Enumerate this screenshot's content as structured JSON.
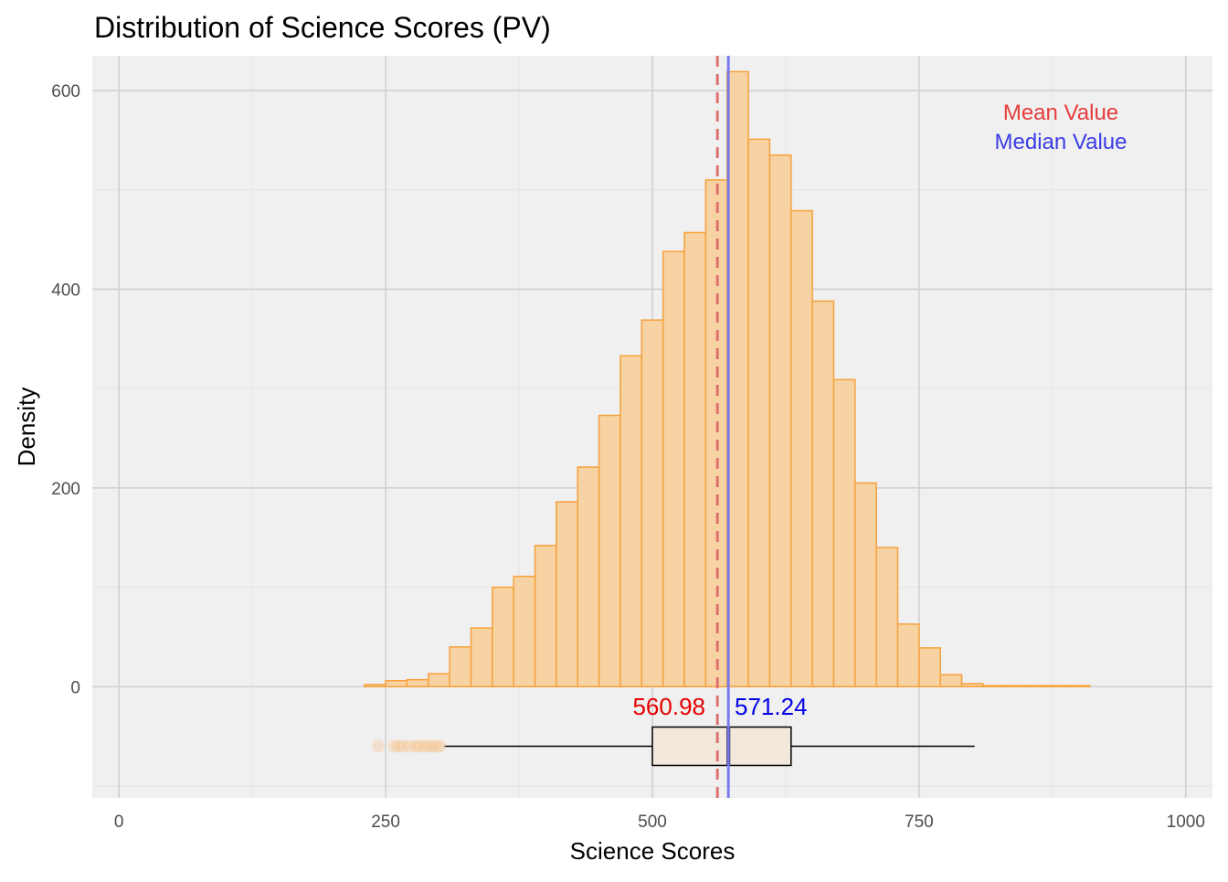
{
  "chart_data": {
    "type": "histogram",
    "title": "Distribution of Science Scores (PV)",
    "xlabel": "Science Scores",
    "ylabel": "Density",
    "xlim": [
      -25,
      1025
    ],
    "ylim": [
      -112,
      635
    ],
    "x_ticks": [
      0,
      250,
      500,
      750,
      1000
    ],
    "y_ticks": [
      0,
      200,
      400,
      600
    ],
    "grid": true,
    "bin_width": 20,
    "bins": [
      {
        "x0": 230,
        "x1": 250,
        "count": 2
      },
      {
        "x0": 250,
        "x1": 270,
        "count": 6
      },
      {
        "x0": 270,
        "x1": 290,
        "count": 7
      },
      {
        "x0": 290,
        "x1": 310,
        "count": 13
      },
      {
        "x0": 310,
        "x1": 330,
        "count": 40
      },
      {
        "x0": 330,
        "x1": 350,
        "count": 59
      },
      {
        "x0": 350,
        "x1": 370,
        "count": 100
      },
      {
        "x0": 370,
        "x1": 390,
        "count": 111
      },
      {
        "x0": 390,
        "x1": 410,
        "count": 142
      },
      {
        "x0": 410,
        "x1": 430,
        "count": 186
      },
      {
        "x0": 430,
        "x1": 450,
        "count": 221
      },
      {
        "x0": 450,
        "x1": 470,
        "count": 273
      },
      {
        "x0": 470,
        "x1": 490,
        "count": 333
      },
      {
        "x0": 490,
        "x1": 510,
        "count": 369
      },
      {
        "x0": 510,
        "x1": 530,
        "count": 438
      },
      {
        "x0": 530,
        "x1": 550,
        "count": 457
      },
      {
        "x0": 550,
        "x1": 570,
        "count": 510
      },
      {
        "x0": 570,
        "x1": 590,
        "count": 619
      },
      {
        "x0": 590,
        "x1": 610,
        "count": 551
      },
      {
        "x0": 610,
        "x1": 630,
        "count": 535
      },
      {
        "x0": 630,
        "x1": 650,
        "count": 479
      },
      {
        "x0": 650,
        "x1": 670,
        "count": 388
      },
      {
        "x0": 670,
        "x1": 690,
        "count": 309
      },
      {
        "x0": 690,
        "x1": 710,
        "count": 205
      },
      {
        "x0": 710,
        "x1": 730,
        "count": 140
      },
      {
        "x0": 730,
        "x1": 750,
        "count": 63
      },
      {
        "x0": 750,
        "x1": 770,
        "count": 39
      },
      {
        "x0": 770,
        "x1": 790,
        "count": 12
      },
      {
        "x0": 790,
        "x1": 810,
        "count": 3
      },
      {
        "x0": 810,
        "x1": 830,
        "count": 1
      },
      {
        "x0": 830,
        "x1": 850,
        "count": 1
      },
      {
        "x0": 850,
        "x1": 870,
        "count": 1
      },
      {
        "x0": 870,
        "x1": 890,
        "count": 1
      },
      {
        "x0": 890,
        "x1": 910,
        "count": 1
      }
    ],
    "boxplot": {
      "whisker_low": 305,
      "q1": 500,
      "median": 571.24,
      "q3": 630,
      "whisker_high": 802,
      "outliers": [
        243,
        258,
        262,
        266,
        272,
        278,
        281,
        286,
        290,
        294,
        298,
        301
      ]
    },
    "mean": 560.98,
    "median": 571.24,
    "mean_label": "560.98",
    "median_label": "571.24",
    "legend": {
      "mean": "Mean Value",
      "median": "Median Value",
      "position": "top-right"
    },
    "colors": {
      "bar_fill": "#f7d3a3",
      "bar_stroke": "#f6a13a",
      "mean_line": "#e07070",
      "median_line": "#7a7af0",
      "mean_text": "#e60000",
      "median_text": "#0000e6",
      "legend_mean": "#e63c3c",
      "legend_median": "#3c3ce6",
      "panel_bg": "#f0f0f0",
      "grid_major": "#d0d0d0",
      "grid_minor": "#e4e4e4",
      "box_fill": "#f2e8dc",
      "outlier": "#f7c48a"
    }
  }
}
